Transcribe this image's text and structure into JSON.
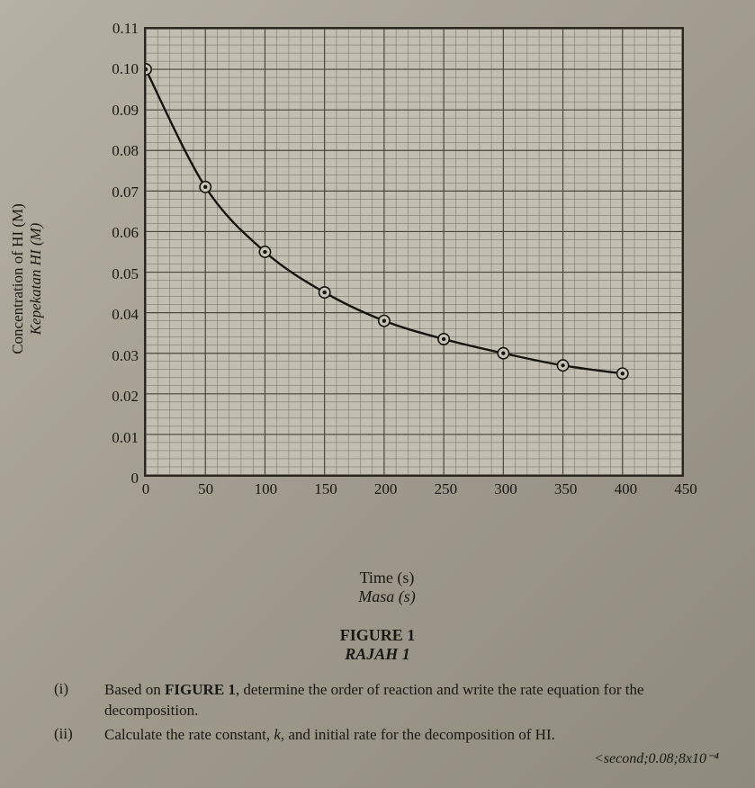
{
  "chart": {
    "type": "scatter-line",
    "xlim": [
      0,
      450
    ],
    "ylim": [
      0,
      0.11
    ],
    "xtick_step": 50,
    "ytick_step": 0.01,
    "minor_x_divisions": 5,
    "minor_y_divisions": 5,
    "background_color": "#c2beb1",
    "border_color": "#2a2620",
    "major_grid_color": "#4a463d",
    "minor_grid_color": "#6e6a5f",
    "major_grid_width": 1.2,
    "minor_grid_width": 0.5,
    "curve_color": "#161410",
    "curve_width": 2.4,
    "marker_outer_stroke": "#161410",
    "marker_inner_fill": "#161410",
    "marker_fill": "#c7c3b6",
    "marker_outer_r": 6.2,
    "marker_inner_r": 2.2,
    "tick_fontsize": 17,
    "label_fontsize": 18,
    "xticks": [
      "0",
      "50",
      "100",
      "150",
      "200",
      "250",
      "300",
      "350",
      "400",
      "450"
    ],
    "yticks": [
      "0",
      "0.01",
      "0.02",
      "0.03",
      "0.04",
      "0.05",
      "0.06",
      "0.07",
      "0.08",
      "0.09",
      "0.10",
      "0.11"
    ],
    "xlabel": "Time (s)",
    "xlabel_alt": "Masa (s)",
    "ylabel": "Concentration of HI (M)",
    "ylabel_alt": "Kepekatan HI (M)",
    "data": [
      {
        "x": 0,
        "y": 0.1
      },
      {
        "x": 50,
        "y": 0.071
      },
      {
        "x": 100,
        "y": 0.055
      },
      {
        "x": 150,
        "y": 0.045
      },
      {
        "x": 200,
        "y": 0.038
      },
      {
        "x": 250,
        "y": 0.0335
      },
      {
        "x": 300,
        "y": 0.03
      },
      {
        "x": 350,
        "y": 0.027
      },
      {
        "x": 400,
        "y": 0.025
      }
    ]
  },
  "caption": {
    "line1": "FIGURE 1",
    "line2": "RAJAH 1"
  },
  "questions": {
    "i": {
      "num": "(i)",
      "pre": "Based on ",
      "bold": "FIGURE 1",
      "post": ", determine the order of reaction and write the rate equation for the decomposition."
    },
    "ii": {
      "num": "(ii)",
      "pre": "Calculate the rate constant, ",
      "k": "k",
      "post": ", and initial rate for the decomposition of HI."
    },
    "answer_hint": "<second;0.08;8x10⁻⁴"
  }
}
